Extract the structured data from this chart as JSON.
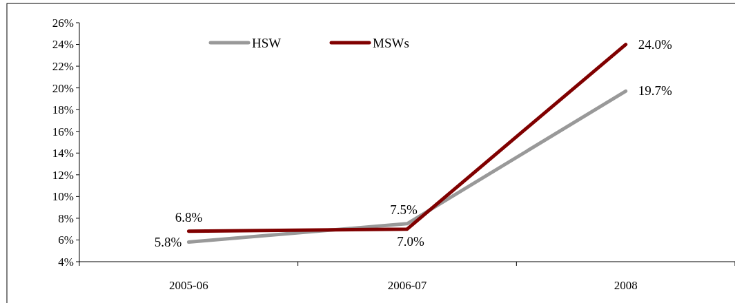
{
  "chart_data": {
    "type": "line",
    "categories": [
      "2005-06",
      "2006-07",
      "2008"
    ],
    "series": [
      {
        "name": "HSW",
        "color": "#999999",
        "values": [
          5.8,
          7.5,
          19.7
        ],
        "value_labels": [
          "5.8%",
          "7.5%",
          "19.7%"
        ]
      },
      {
        "name": "MSWs",
        "color": "#800000",
        "values": [
          6.8,
          7.0,
          24.0
        ],
        "value_labels": [
          "6.8%",
          "7.0%",
          "24.0%"
        ]
      }
    ],
    "ylim": [
      4,
      26
    ],
    "yticks": [
      {
        "value": 4,
        "label": "4%"
      },
      {
        "value": 6,
        "label": "6%"
      },
      {
        "value": 8,
        "label": "8%"
      },
      {
        "value": 10,
        "label": "10%"
      },
      {
        "value": 12,
        "label": "12%"
      },
      {
        "value": 14,
        "label": "14%"
      },
      {
        "value": 16,
        "label": "16%"
      },
      {
        "value": 18,
        "label": "18%"
      },
      {
        "value": 20,
        "label": "20%"
      },
      {
        "value": 22,
        "label": "22%"
      },
      {
        "value": 24,
        "label": "24%"
      },
      {
        "value": 26,
        "label": "26%"
      }
    ],
    "legend": "top",
    "marker": "none",
    "line_style": "solid"
  }
}
